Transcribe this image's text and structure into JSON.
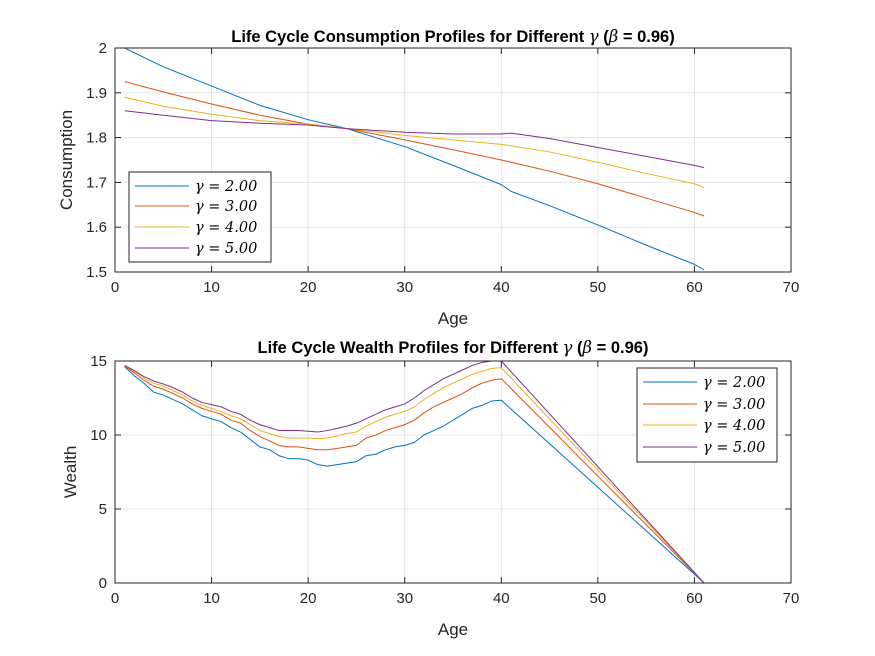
{
  "colors": {
    "blue": "#0072BD",
    "orange": "#D95319",
    "yellow": "#EDB120",
    "purple": "#7E2F8E",
    "grid": "#e5e5e5",
    "axis": "#262626"
  },
  "chart_data": [
    {
      "type": "line",
      "title": {
        "prefix": "Life Cycle Consumption Profiles for Different ",
        "gamma": "γ",
        "mid": " (",
        "beta": "β",
        "suffix": " = 0.96)"
      },
      "xlabel": "Age",
      "ylabel": "Consumption",
      "xlim": [
        0,
        70
      ],
      "ylim": [
        1.5,
        2.0
      ],
      "xticks": [
        0,
        10,
        20,
        30,
        40,
        50,
        60,
        70
      ],
      "yticks": [
        1.5,
        1.6,
        1.7,
        1.8,
        1.9,
        2.0
      ],
      "ytick_labels": [
        "1.5",
        "1.6",
        "1.7",
        "1.8",
        "1.9",
        "2"
      ],
      "grid": true,
      "legend_position": "bottom-left",
      "series": [
        {
          "name": "γ = 2.00",
          "color": "#0072BD",
          "x": [
            1,
            5,
            10,
            15,
            20,
            24,
            30,
            35,
            40,
            41,
            45,
            50,
            55,
            60,
            61
          ],
          "y": [
            2.0,
            1.958,
            1.915,
            1.872,
            1.84,
            1.82,
            1.78,
            1.738,
            1.695,
            1.68,
            1.648,
            1.605,
            1.56,
            1.517,
            1.505
          ]
        },
        {
          "name": "γ = 3.00",
          "color": "#D95319",
          "x": [
            1,
            5,
            10,
            15,
            20,
            24,
            30,
            35,
            40,
            45,
            50,
            55,
            60,
            61
          ],
          "y": [
            1.925,
            1.902,
            1.875,
            1.85,
            1.83,
            1.82,
            1.795,
            1.773,
            1.75,
            1.725,
            1.697,
            1.665,
            1.633,
            1.625
          ]
        },
        {
          "name": "γ = 4.00",
          "color": "#EDB120",
          "x": [
            1,
            5,
            10,
            15,
            20,
            24,
            30,
            35,
            40,
            45,
            50,
            55,
            60,
            61
          ],
          "y": [
            1.89,
            1.87,
            1.852,
            1.838,
            1.83,
            1.82,
            1.805,
            1.795,
            1.785,
            1.768,
            1.745,
            1.72,
            1.697,
            1.688
          ]
        },
        {
          "name": "γ = 5.00",
          "color": "#7E2F8E",
          "x": [
            1,
            5,
            10,
            15,
            20,
            24,
            30,
            35,
            40,
            41,
            45,
            50,
            55,
            60,
            61
          ],
          "y": [
            1.86,
            1.85,
            1.838,
            1.832,
            1.828,
            1.82,
            1.812,
            1.808,
            1.808,
            1.81,
            1.798,
            1.778,
            1.758,
            1.738,
            1.733
          ]
        }
      ]
    },
    {
      "type": "line",
      "title": {
        "prefix": "Life Cycle Wealth Profiles for Different ",
        "gamma": "γ",
        "mid": " (",
        "beta": "β",
        "suffix": " = 0.96)"
      },
      "xlabel": "Age",
      "ylabel": "Wealth",
      "xlim": [
        0,
        70
      ],
      "ylim": [
        0,
        15
      ],
      "xticks": [
        0,
        10,
        20,
        30,
        40,
        50,
        60,
        70
      ],
      "yticks": [
        0,
        5,
        10,
        15
      ],
      "ytick_labels": [
        "0",
        "5",
        "10",
        "15"
      ],
      "grid": true,
      "legend_position": "top-right",
      "series": [
        {
          "name": "γ = 2.00",
          "color": "#0072BD",
          "x": [
            1,
            2,
            3,
            4,
            5,
            6,
            7,
            8,
            9,
            10,
            11,
            12,
            13,
            14,
            15,
            16,
            17,
            18,
            19,
            20,
            21,
            22,
            23,
            24,
            25,
            26,
            27,
            28,
            29,
            30,
            31,
            32,
            33,
            34,
            35,
            36,
            37,
            38,
            39,
            40,
            61
          ],
          "y": [
            14.6,
            14.0,
            13.5,
            12.9,
            12.7,
            12.4,
            12.1,
            11.7,
            11.3,
            11.1,
            10.9,
            10.5,
            10.2,
            9.7,
            9.2,
            9.0,
            8.6,
            8.4,
            8.4,
            8.3,
            8.0,
            7.9,
            8.0,
            8.1,
            8.2,
            8.6,
            8.7,
            9.0,
            9.2,
            9.3,
            9.5,
            10.0,
            10.3,
            10.6,
            11.0,
            11.4,
            11.8,
            12.0,
            12.3,
            12.35,
            0.0
          ]
        },
        {
          "name": "γ = 3.00",
          "color": "#D95319",
          "x": [
            1,
            2,
            3,
            4,
            5,
            6,
            7,
            8,
            9,
            10,
            11,
            12,
            13,
            14,
            15,
            16,
            17,
            18,
            19,
            20,
            21,
            22,
            23,
            24,
            25,
            26,
            27,
            28,
            29,
            30,
            31,
            32,
            33,
            34,
            35,
            36,
            37,
            38,
            39,
            40,
            61
          ],
          "y": [
            14.65,
            14.2,
            13.7,
            13.3,
            13.1,
            12.8,
            12.5,
            12.1,
            11.8,
            11.6,
            11.4,
            11.0,
            10.8,
            10.3,
            9.9,
            9.6,
            9.3,
            9.2,
            9.2,
            9.1,
            9.0,
            9.0,
            9.1,
            9.2,
            9.3,
            9.8,
            10.0,
            10.3,
            10.5,
            10.7,
            11.0,
            11.5,
            11.9,
            12.2,
            12.5,
            12.8,
            13.2,
            13.5,
            13.7,
            13.8,
            0.0
          ]
        },
        {
          "name": "γ = 4.00",
          "color": "#EDB120",
          "x": [
            1,
            2,
            3,
            4,
            5,
            6,
            7,
            8,
            9,
            10,
            11,
            12,
            13,
            14,
            15,
            16,
            17,
            18,
            19,
            20,
            21,
            22,
            23,
            24,
            25,
            26,
            27,
            28,
            29,
            30,
            31,
            32,
            33,
            34,
            35,
            36,
            37,
            38,
            39,
            40,
            61
          ],
          "y": [
            14.7,
            14.3,
            13.85,
            13.5,
            13.3,
            13.0,
            12.7,
            12.3,
            12.0,
            11.8,
            11.6,
            11.3,
            11.1,
            10.7,
            10.3,
            10.1,
            9.9,
            9.8,
            9.8,
            9.8,
            9.75,
            9.8,
            9.95,
            10.1,
            10.2,
            10.6,
            10.9,
            11.2,
            11.4,
            11.6,
            11.9,
            12.4,
            12.8,
            13.2,
            13.5,
            13.8,
            14.1,
            14.3,
            14.5,
            14.55,
            0.0
          ]
        },
        {
          "name": "γ = 5.00",
          "color": "#7E2F8E",
          "x": [
            1,
            2,
            3,
            4,
            5,
            6,
            7,
            8,
            9,
            10,
            11,
            12,
            13,
            14,
            15,
            16,
            17,
            18,
            19,
            20,
            21,
            22,
            23,
            24,
            25,
            26,
            27,
            28,
            29,
            30,
            31,
            32,
            33,
            34,
            35,
            36,
            37,
            38,
            39,
            40,
            61
          ],
          "y": [
            14.7,
            14.35,
            13.95,
            13.65,
            13.45,
            13.2,
            12.9,
            12.5,
            12.2,
            12.05,
            11.9,
            11.6,
            11.4,
            11.0,
            10.7,
            10.5,
            10.3,
            10.3,
            10.3,
            10.25,
            10.2,
            10.3,
            10.45,
            10.6,
            10.8,
            11.1,
            11.4,
            11.7,
            11.9,
            12.1,
            12.5,
            13.0,
            13.4,
            13.8,
            14.1,
            14.4,
            14.7,
            14.9,
            15.0,
            15.0,
            0.0
          ]
        }
      ]
    }
  ]
}
